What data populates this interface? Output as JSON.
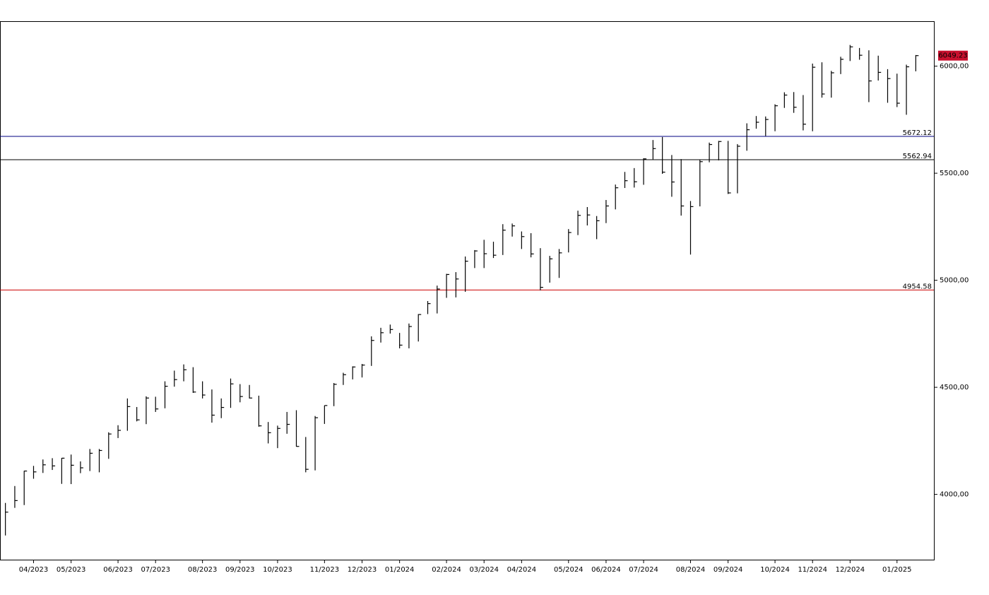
{
  "chart_data": {
    "type": "ohlc",
    "categories": [
      null,
      null,
      null,
      "04/2023",
      null,
      null,
      null,
      "05/2023",
      null,
      null,
      null,
      null,
      "06/2023",
      null,
      null,
      null,
      "07/2023",
      null,
      null,
      null,
      null,
      "08/2023",
      null,
      null,
      null,
      "09/2023",
      null,
      null,
      null,
      "10/2023",
      null,
      null,
      null,
      null,
      "11/2023",
      null,
      null,
      null,
      "12/2023",
      null,
      null,
      null,
      "01/2024",
      null,
      null,
      null,
      null,
      "02/2024",
      null,
      null,
      null,
      "03/2024",
      null,
      null,
      null,
      "04/2024",
      null,
      null,
      null,
      null,
      "05/2024",
      null,
      null,
      null,
      "06/2024",
      null,
      null,
      null,
      "07/2024",
      null,
      null,
      null,
      null,
      "08/2024",
      null,
      null,
      null,
      "09/2024",
      null,
      null,
      null,
      null,
      "10/2024",
      null,
      null,
      null,
      "11/2024",
      null,
      null,
      null,
      "12/2024",
      null,
      null,
      null,
      null,
      "01/2025",
      null,
      null
    ],
    "high": [
      3960,
      4039,
      4110,
      4133,
      4163,
      4169,
      4170,
      4186,
      4154,
      4212,
      4212,
      4290,
      4323,
      4448,
      4408,
      4458,
      4456,
      4528,
      4578,
      4607,
      4594,
      4528,
      4490,
      4448,
      4541,
      4515,
      4511,
      4461,
      4338,
      4321,
      4385,
      4393,
      4268,
      4366,
      4415,
      4520,
      4568,
      4598,
      4609,
      4738,
      4778,
      4793,
      4754,
      4798,
      4842,
      4903,
      4975,
      5030,
      5038,
      5111,
      5141,
      5189,
      5180,
      5262,
      5265,
      5228,
      5220,
      5150,
      5114,
      5146,
      5239,
      5325,
      5342,
      5300,
      5375,
      5447,
      5506,
      5524,
      5570,
      5655,
      5669,
      5585,
      5566,
      5370,
      5563,
      5643,
      5651,
      5651,
      5636,
      5733,
      5767,
      5765,
      5822,
      5878,
      5879,
      5865,
      6012,
      6018,
      5978,
      6044,
      6099,
      6085,
      6074,
      6049,
      5986,
      5965,
      6007,
      6052
    ],
    "low": [
      3808,
      3937,
      3950,
      4073,
      4100,
      4114,
      4049,
      4048,
      4099,
      4109,
      4103,
      4166,
      4263,
      4297,
      4341,
      4328,
      4385,
      4402,
      4503,
      4528,
      4474,
      4448,
      4335,
      4356,
      4404,
      4430,
      4448,
      4316,
      4238,
      4216,
      4283,
      4223,
      4103,
      4112,
      4329,
      4412,
      4511,
      4537,
      4546,
      4600,
      4709,
      4751,
      4682,
      4682,
      4714,
      4842,
      4845,
      4918,
      4920,
      4946,
      5057,
      5057,
      5104,
      5118,
      5204,
      5146,
      5107,
      4953,
      4989,
      5011,
      5130,
      5211,
      5256,
      5192,
      5267,
      5331,
      5431,
      5433,
      5446,
      5565,
      5497,
      5390,
      5302,
      5120,
      5345,
      5551,
      5560,
      5403,
      5406,
      5605,
      5708,
      5674,
      5696,
      5805,
      5782,
      5700,
      5696,
      5853,
      5853,
      5963,
      6024,
      6030,
      5832,
      5933,
      5829,
      5809,
      5773,
      5976
    ],
    "close": [
      3917,
      3971,
      4109,
      4105,
      4138,
      4133,
      4169,
      4136,
      4124,
      4192,
      4205,
      4282,
      4299,
      4410,
      4348,
      4450,
      4399,
      4505,
      4536,
      4582,
      4478,
      4464,
      4370,
      4406,
      4516,
      4457,
      4450,
      4320,
      4288,
      4308,
      4327,
      4224,
      4117,
      4358,
      4415,
      4514,
      4559,
      4595,
      4604,
      4719,
      4755,
      4770,
      4697,
      4784,
      4840,
      4891,
      4959,
      5027,
      5006,
      5089,
      5137,
      5124,
      5117,
      5234,
      5254,
      5204,
      5123,
      4967,
      5100,
      5128,
      5223,
      5303,
      5305,
      5278,
      5347,
      5432,
      5465,
      5460,
      5567,
      5615,
      5505,
      5459,
      5347,
      5344,
      5554,
      5634,
      5648,
      5408,
      5626,
      5703,
      5738,
      5751,
      5815,
      5865,
      5808,
      5729,
      5995,
      5870,
      5969,
      6032,
      6090,
      6051,
      5931,
      5971,
      5942,
      5827,
      5997,
      6049.23
    ],
    "color": "#000000",
    "ylim": [
      3695,
      6210
    ],
    "yticks": [
      {
        "value": 4000,
        "label": "4000,00"
      },
      {
        "value": 4500,
        "label": "4500,00"
      },
      {
        "value": 5000,
        "label": "5000,00"
      },
      {
        "value": 5500,
        "label": "5500,00"
      },
      {
        "value": 6000,
        "label": "6000,00"
      }
    ],
    "levels": [
      {
        "value": 5672.12,
        "color": "#000080"
      },
      {
        "value": 5562.94,
        "color": "#000000"
      },
      {
        "value": 4954.58,
        "color": "#cc0000"
      }
    ],
    "last_price": 6049.23,
    "last_price_color": "#c8102e"
  }
}
